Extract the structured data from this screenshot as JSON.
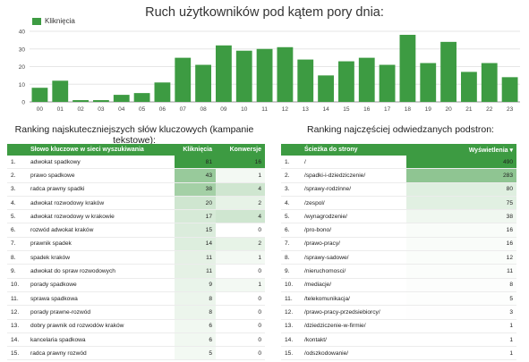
{
  "chart_data": {
    "type": "bar",
    "title": "Ruch użytkowników pod kątem pory dnia:",
    "legend": [
      "Kliknięcia"
    ],
    "legend_position": "top-left",
    "categories": [
      "00",
      "01",
      "02",
      "03",
      "04",
      "05",
      "06",
      "07",
      "08",
      "09",
      "10",
      "11",
      "12",
      "13",
      "14",
      "15",
      "16",
      "17",
      "18",
      "19",
      "20",
      "21",
      "22",
      "23"
    ],
    "series": [
      {
        "name": "Kliknięcia",
        "values": [
          8,
          12,
          1,
          1,
          4,
          5,
          11,
          25,
          21,
          32,
          29,
          30,
          31,
          24,
          15,
          23,
          25,
          21,
          38,
          22,
          34,
          17,
          22,
          14
        ]
      }
    ],
    "ylim": [
      0,
      40
    ],
    "yticks": [
      "0",
      "10",
      "20",
      "30",
      "40"
    ],
    "grid": true,
    "color": "#3d9b42"
  },
  "keywords": {
    "title": "Ranking najskuteczniejszych słów kluczowych (kampanie tekstowe):",
    "headers": [
      "",
      "Słowo kluczowe w sieci wyszukiwania",
      "Kliknięcia",
      "Konwersje"
    ],
    "rows": [
      [
        "1.",
        "adwokat spadkowy",
        "81",
        "16"
      ],
      [
        "2.",
        "prawo spadkowe",
        "43",
        "1"
      ],
      [
        "3.",
        "radca prawny spadki",
        "38",
        "4"
      ],
      [
        "4.",
        "adwokat rozwodowy kraków",
        "20",
        "2"
      ],
      [
        "5.",
        "adwokat rozwodowy w krakowie",
        "17",
        "4"
      ],
      [
        "6.",
        "rozwód adwokat kraków",
        "15",
        "0"
      ],
      [
        "7.",
        "prawnik spadek",
        "14",
        "2"
      ],
      [
        "8.",
        "spadek kraków",
        "11",
        "1"
      ],
      [
        "9.",
        "adwokat do spraw rozwodowych",
        "11",
        "0"
      ],
      [
        "10.",
        "porady spadkowe",
        "9",
        "1"
      ],
      [
        "11.",
        "sprawa spadkowa",
        "8",
        "0"
      ],
      [
        "12.",
        "porady prawne-rozwód",
        "8",
        "0"
      ],
      [
        "13.",
        "dobry prawnik od rozwodów kraków",
        "6",
        "0"
      ],
      [
        "14.",
        "kancelaria spadkowa",
        "6",
        "0"
      ],
      [
        "15.",
        "radca prawny rozwód",
        "5",
        "0"
      ]
    ]
  },
  "pages": {
    "title": "Ranking najczęściej odwiedzanych podstron:",
    "headers": [
      "",
      "Ścieżka do strony",
      "Wyświetlenia ▾"
    ],
    "rows": [
      [
        "1.",
        "/",
        "490"
      ],
      [
        "2.",
        "/spadki-i-dziedziczenie/",
        "283"
      ],
      [
        "3.",
        "/sprawy-rodzinne/",
        "80"
      ],
      [
        "4.",
        "/zespol/",
        "75"
      ],
      [
        "5.",
        "/wynagrodzenie/",
        "38"
      ],
      [
        "6.",
        "/pro-bono/",
        "16"
      ],
      [
        "7.",
        "/prawo-pracy/",
        "16"
      ],
      [
        "8.",
        "/sprawy-sadowe/",
        "12"
      ],
      [
        "9.",
        "/nieruchomosci/",
        "11"
      ],
      [
        "10.",
        "/mediacje/",
        "8"
      ],
      [
        "11.",
        "/telekomunikacja/",
        "5"
      ],
      [
        "12.",
        "/prawo-pracy-przedsiebiorcy/",
        "3"
      ],
      [
        "13.",
        "/dziedziczenie-w-firmie/",
        "1"
      ],
      [
        "14.",
        "/kontakt/",
        "1"
      ],
      [
        "15.",
        "/odszkodowanie/",
        "1"
      ]
    ]
  }
}
